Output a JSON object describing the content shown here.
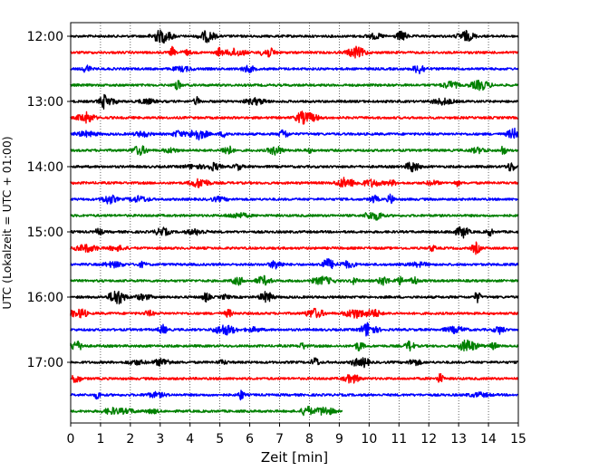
{
  "chart_data": {
    "type": "line",
    "chart_kind": "helicorder",
    "xlabel": "Zeit  [min]",
    "ylabel": "UTC (Lokalzeit = UTC + 01:00)",
    "xlim": [
      0,
      15
    ],
    "x_ticks": [
      0,
      1,
      2,
      3,
      4,
      5,
      6,
      7,
      8,
      9,
      10,
      11,
      12,
      13,
      14,
      15
    ],
    "grid": "vertical dotted",
    "y_tick_labels": [
      "12:00",
      "13:00",
      "14:00",
      "15:00",
      "16:00",
      "17:00"
    ],
    "trace_colors": [
      "#000000",
      "#ff0000",
      "#0000ff",
      "#008000"
    ],
    "traces": [
      {
        "start": "12:00",
        "end_min": 15,
        "color": "#000000"
      },
      {
        "start": "12:15",
        "end_min": 15,
        "color": "#ff0000"
      },
      {
        "start": "12:30",
        "end_min": 15,
        "color": "#0000ff"
      },
      {
        "start": "12:45",
        "end_min": 15,
        "color": "#008000"
      },
      {
        "start": "13:00",
        "end_min": 15,
        "color": "#000000"
      },
      {
        "start": "13:15",
        "end_min": 15,
        "color": "#ff0000"
      },
      {
        "start": "13:30",
        "end_min": 15,
        "color": "#0000ff"
      },
      {
        "start": "13:45",
        "end_min": 15,
        "color": "#008000"
      },
      {
        "start": "14:00",
        "end_min": 15,
        "color": "#000000"
      },
      {
        "start": "14:15",
        "end_min": 15,
        "color": "#ff0000"
      },
      {
        "start": "14:30",
        "end_min": 15,
        "color": "#0000ff"
      },
      {
        "start": "14:45",
        "end_min": 15,
        "color": "#008000"
      },
      {
        "start": "15:00",
        "end_min": 15,
        "color": "#000000"
      },
      {
        "start": "15:15",
        "end_min": 15,
        "color": "#ff0000"
      },
      {
        "start": "15:30",
        "end_min": 15,
        "color": "#0000ff"
      },
      {
        "start": "15:45",
        "end_min": 15,
        "color": "#008000"
      },
      {
        "start": "16:00",
        "end_min": 15,
        "color": "#000000"
      },
      {
        "start": "16:15",
        "end_min": 15,
        "color": "#ff0000"
      },
      {
        "start": "16:30",
        "end_min": 15,
        "color": "#0000ff"
      },
      {
        "start": "16:45",
        "end_min": 15,
        "color": "#008000"
      },
      {
        "start": "17:00",
        "end_min": 15,
        "color": "#000000"
      },
      {
        "start": "17:15",
        "end_min": 15,
        "color": "#ff0000"
      },
      {
        "start": "17:30",
        "end_min": 15,
        "color": "#0000ff"
      },
      {
        "start": "17:45",
        "end_min": 9.1,
        "color": "#008000"
      }
    ]
  }
}
